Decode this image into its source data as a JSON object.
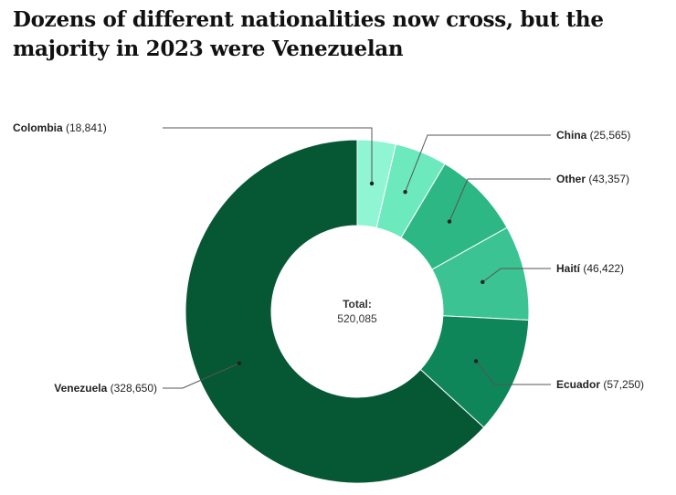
{
  "title": "Dozens of different nationalities now cross, but the majority in 2023 were Venezuelan",
  "chart_data": {
    "type": "pie",
    "donut": true,
    "title": "Dozens of different nationalities now cross, but the majority in 2023 were Venezuelan",
    "center_label": "Total:",
    "center_value": "520,085",
    "total": 520085,
    "slices": [
      {
        "name": "Colombia",
        "value": 18841,
        "value_label": "(18,841)",
        "color": "#8ff5d2"
      },
      {
        "name": "China",
        "value": 25565,
        "value_label": "(25,565)",
        "color": "#6ce9bd"
      },
      {
        "name": "Other",
        "value": 43357,
        "value_label": "(43,357)",
        "color": "#2db784"
      },
      {
        "name": "Haití",
        "value": 46422,
        "value_label": "(46,422)",
        "color": "#3cc393"
      },
      {
        "name": "Ecuador",
        "value": 57250,
        "value_label": "(57,250)",
        "color": "#0e865a"
      },
      {
        "name": "Venezuela",
        "value": 328650,
        "value_label": "(328,650)",
        "color": "#065734"
      }
    ]
  }
}
